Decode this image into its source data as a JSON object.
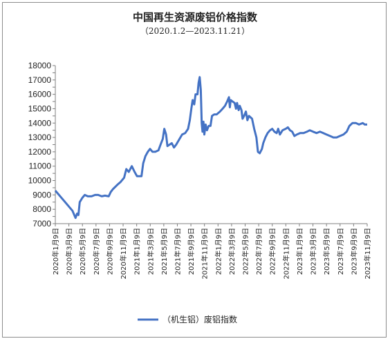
{
  "chart_data": {
    "type": "line",
    "title": "中国再生资源废铝价格指数",
    "subtitle": "（2020.1.2—2023.11.21）",
    "xlabel": "",
    "ylabel": "",
    "ylim": [
      7000,
      18000
    ],
    "ytick_step": 500,
    "grid": false,
    "legend_position": "bottom",
    "x_start": "2020-01-02",
    "x_end": "2023-11-21",
    "x_ticks": [
      "2020年1月9日",
      "2020年3月9日",
      "2020年5月9日",
      "2020年7月9日",
      "2020年9月9日",
      "2020年11月9日",
      "2021年1月9日",
      "2021年3月9日",
      "2021年5月9日",
      "2021年7月9日",
      "2021年9月9日",
      "2021年11月9日",
      "2022年1月9日",
      "2022年3月9日",
      "2022年5月9日",
      "2022年7月9日",
      "2022年9月9日",
      "2022年11月9日",
      "2023年1月9日",
      "2023年3月9日",
      "2023年5月9日",
      "2023年7月9日",
      "2023年9月9日",
      "2023年11月9日"
    ],
    "series": [
      {
        "name": "（机生铝）废铝指数",
        "color": "#4472c4",
        "points": [
          [
            "2020-01-02",
            9300
          ],
          [
            "2020-02-10",
            8600
          ],
          [
            "2020-03-20",
            7900
          ],
          [
            "2020-04-03",
            7400
          ],
          [
            "2020-04-10",
            7700
          ],
          [
            "2020-04-16",
            7600
          ],
          [
            "2020-04-22",
            8500
          ],
          [
            "2020-05-04",
            8800
          ],
          [
            "2020-05-15",
            9000
          ],
          [
            "2020-05-29",
            8900
          ],
          [
            "2020-06-15",
            8900
          ],
          [
            "2020-07-01",
            9000
          ],
          [
            "2020-07-15",
            9000
          ],
          [
            "2020-07-31",
            8900
          ],
          [
            "2020-08-15",
            8950
          ],
          [
            "2020-09-01",
            8900
          ],
          [
            "2020-09-10",
            9200
          ],
          [
            "2020-09-20",
            9400
          ],
          [
            "2020-10-10",
            9700
          ],
          [
            "2020-10-25",
            9900
          ],
          [
            "2020-11-10",
            10200
          ],
          [
            "2020-11-20",
            10800
          ],
          [
            "2020-12-01",
            10600
          ],
          [
            "2020-12-15",
            11000
          ],
          [
            "2020-12-28",
            10600
          ],
          [
            "2021-01-08",
            10300
          ],
          [
            "2021-01-20",
            10300
          ],
          [
            "2021-01-28",
            10300
          ],
          [
            "2021-02-05",
            11200
          ],
          [
            "2021-02-15",
            11700
          ],
          [
            "2021-02-26",
            12000
          ],
          [
            "2021-03-08",
            12200
          ],
          [
            "2021-03-19",
            12000
          ],
          [
            "2021-04-01",
            12000
          ],
          [
            "2021-04-15",
            12100
          ],
          [
            "2021-04-25",
            12500
          ],
          [
            "2021-05-05",
            12900
          ],
          [
            "2021-05-12",
            13600
          ],
          [
            "2021-05-20",
            13200
          ],
          [
            "2021-05-26",
            12400
          ],
          [
            "2021-06-05",
            12500
          ],
          [
            "2021-06-15",
            12600
          ],
          [
            "2021-06-25",
            12300
          ],
          [
            "2021-07-05",
            12500
          ],
          [
            "2021-07-20",
            12900
          ],
          [
            "2021-08-01",
            13200
          ],
          [
            "2021-08-15",
            13300
          ],
          [
            "2021-08-28",
            13600
          ],
          [
            "2021-09-05",
            14200
          ],
          [
            "2021-09-12",
            15000
          ],
          [
            "2021-09-18",
            15600
          ],
          [
            "2021-09-25",
            15300
          ],
          [
            "2021-10-01",
            16000
          ],
          [
            "2021-10-10",
            16000
          ],
          [
            "2021-10-15",
            16800
          ],
          [
            "2021-10-20",
            17200
          ],
          [
            "2021-10-25",
            16300
          ],
          [
            "2021-10-29",
            14000
          ],
          [
            "2021-11-02",
            13400
          ],
          [
            "2021-11-06",
            14100
          ],
          [
            "2021-11-10",
            13200
          ],
          [
            "2021-11-16",
            13900
          ],
          [
            "2021-11-22",
            13500
          ],
          [
            "2021-11-30",
            13800
          ],
          [
            "2021-12-08",
            13800
          ],
          [
            "2021-12-15",
            14500
          ],
          [
            "2021-12-25",
            14600
          ],
          [
            "2022-01-05",
            14600
          ],
          [
            "2022-01-20",
            14800
          ],
          [
            "2022-02-01",
            15000
          ],
          [
            "2022-02-12",
            15200
          ],
          [
            "2022-02-22",
            15500
          ],
          [
            "2022-03-02",
            15800
          ],
          [
            "2022-03-06",
            15100
          ],
          [
            "2022-03-10",
            15600
          ],
          [
            "2022-03-18",
            15500
          ],
          [
            "2022-03-28",
            15400
          ],
          [
            "2022-04-03",
            15000
          ],
          [
            "2022-04-08",
            15400
          ],
          [
            "2022-04-15",
            14900
          ],
          [
            "2022-04-20",
            15200
          ],
          [
            "2022-04-28",
            14900
          ],
          [
            "2022-05-03",
            14300
          ],
          [
            "2022-05-10",
            14500
          ],
          [
            "2022-05-18",
            14800
          ],
          [
            "2022-05-25",
            14200
          ],
          [
            "2022-06-01",
            14500
          ],
          [
            "2022-06-15",
            14300
          ],
          [
            "2022-06-25",
            13600
          ],
          [
            "2022-07-05",
            13000
          ],
          [
            "2022-07-12",
            12000
          ],
          [
            "2022-07-20",
            11900
          ],
          [
            "2022-07-30",
            12200
          ],
          [
            "2022-08-05",
            12600
          ],
          [
            "2022-08-15",
            13000
          ],
          [
            "2022-08-25",
            13300
          ],
          [
            "2022-09-05",
            13500
          ],
          [
            "2022-09-15",
            13600
          ],
          [
            "2022-09-25",
            13400
          ],
          [
            "2022-10-05",
            13300
          ],
          [
            "2022-10-12",
            13600
          ],
          [
            "2022-10-20",
            13200
          ],
          [
            "2022-11-01",
            13500
          ],
          [
            "2022-11-15",
            13600
          ],
          [
            "2022-11-25",
            13700
          ],
          [
            "2022-12-05",
            13500
          ],
          [
            "2022-12-15",
            13400
          ],
          [
            "2022-12-25",
            13100
          ],
          [
            "2023-01-05",
            13200
          ],
          [
            "2023-01-20",
            13300
          ],
          [
            "2023-02-05",
            13300
          ],
          [
            "2023-02-20",
            13400
          ],
          [
            "2023-03-05",
            13500
          ],
          [
            "2023-03-20",
            13400
          ],
          [
            "2023-04-05",
            13300
          ],
          [
            "2023-04-20",
            13400
          ],
          [
            "2023-05-05",
            13300
          ],
          [
            "2023-05-20",
            13200
          ],
          [
            "2023-06-05",
            13100
          ],
          [
            "2023-06-20",
            13000
          ],
          [
            "2023-07-05",
            13000
          ],
          [
            "2023-07-20",
            13100
          ],
          [
            "2023-08-05",
            13200
          ],
          [
            "2023-08-20",
            13400
          ],
          [
            "2023-09-01",
            13800
          ],
          [
            "2023-09-15",
            14000
          ],
          [
            "2023-10-01",
            14000
          ],
          [
            "2023-10-15",
            13900
          ],
          [
            "2023-11-01",
            14000
          ],
          [
            "2023-11-10",
            13900
          ],
          [
            "2023-11-21",
            13900
          ]
        ]
      }
    ]
  }
}
